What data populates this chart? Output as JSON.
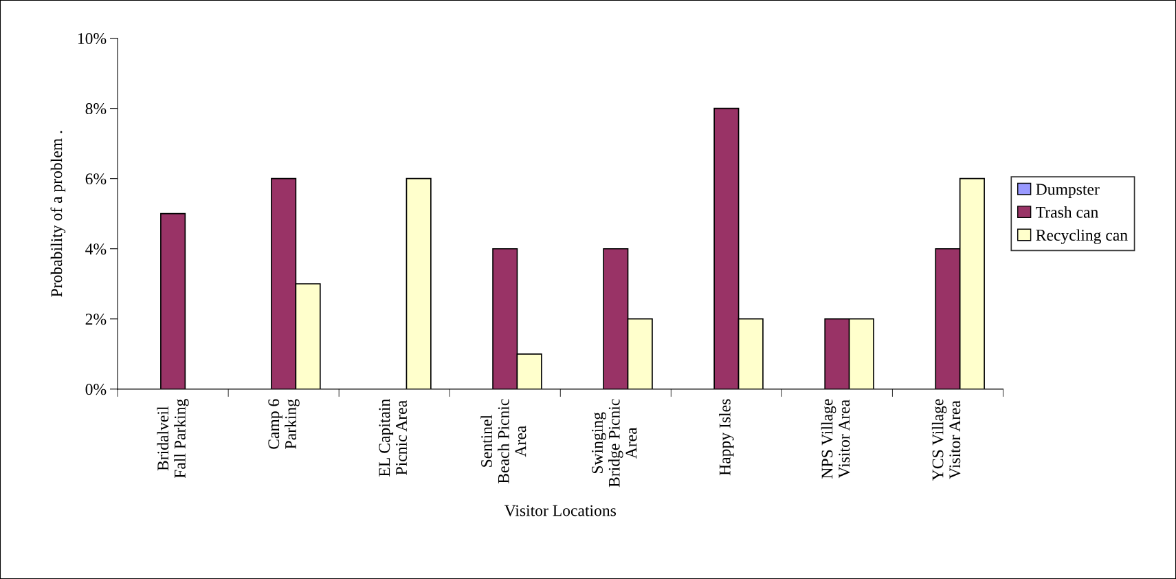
{
  "chart_data": {
    "type": "bar",
    "xlabel": "Visitor Locations",
    "ylabel": "Probability of a problem .",
    "categories": [
      "Bridalveil\nFall Parking",
      "Camp 6\nParking",
      "EL Capitain\nPicnic Area",
      "Sentinel\nBeach Picnic\nArea",
      "Swinging\nBridge Picnic\nArea",
      "Happy Isles",
      "NPS Village\nVisitor Area",
      "YCS Village\nVisitor Area"
    ],
    "series": [
      {
        "name": "Dumpster",
        "color": "#9999ff",
        "values": [
          0,
          0,
          0,
          0,
          0,
          0,
          0,
          0
        ]
      },
      {
        "name": "Trash can",
        "color": "#993366",
        "values": [
          5,
          6,
          0,
          4,
          4,
          8,
          2,
          4
        ]
      },
      {
        "name": "Recycling can",
        "color": "#ffffcc",
        "values": [
          0,
          3,
          6,
          1,
          2,
          2,
          2,
          6
        ]
      }
    ],
    "ylim": [
      0,
      10
    ],
    "yticks": [
      {
        "value": 0,
        "label": "0%"
      },
      {
        "value": 2,
        "label": "2%"
      },
      {
        "value": 4,
        "label": "4%"
      },
      {
        "value": 6,
        "label": "6%"
      },
      {
        "value": 8,
        "label": "8%"
      },
      {
        "value": 10,
        "label": "10%"
      }
    ],
    "grid": false,
    "legend": "right"
  }
}
